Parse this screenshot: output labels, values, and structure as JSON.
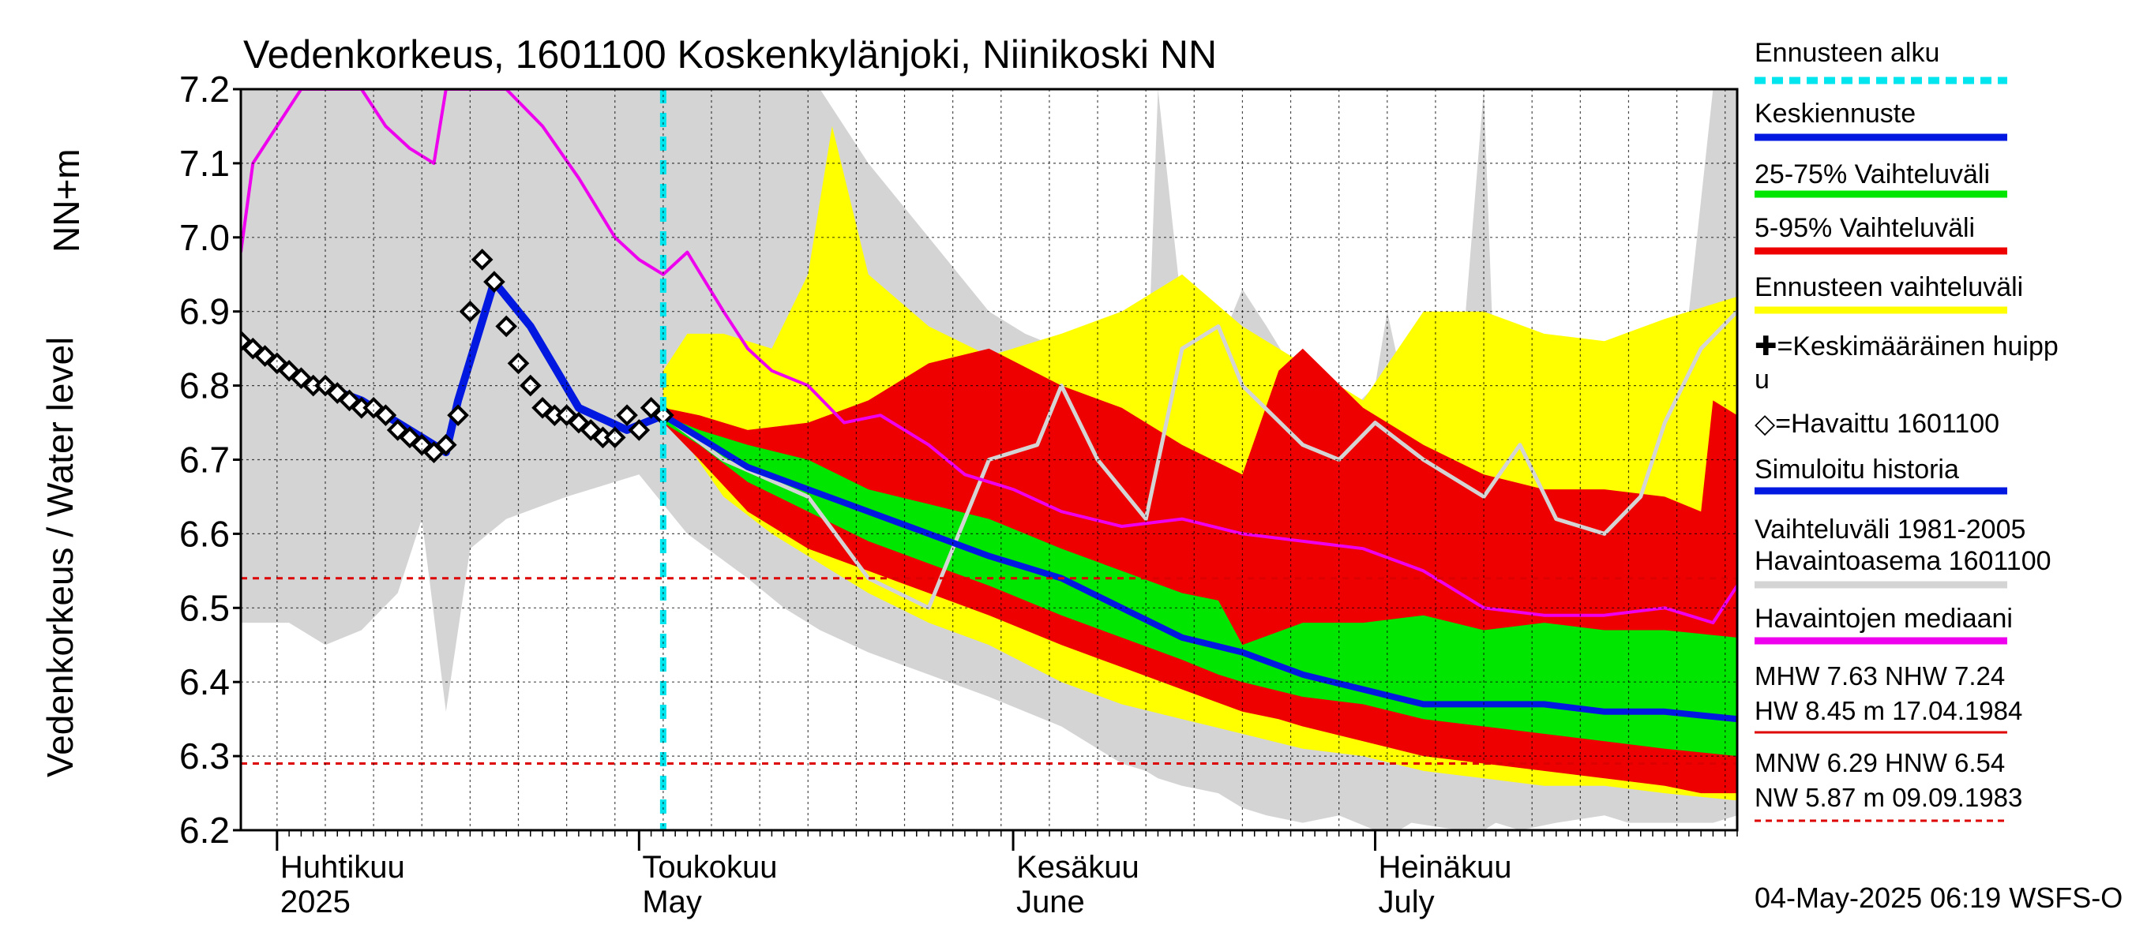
{
  "chart_data": {
    "type": "area",
    "title": "Vedenkorkeus, 1601100 Koskenkylänjoki, Niinikoski NN",
    "ylabel_left": "Vedenkorkeus / Water level",
    "ylabel_unit": "NN+m",
    "ylim": [
      6.2,
      7.2
    ],
    "y_ticks": [
      "6.2",
      "6.3",
      "6.4",
      "6.5",
      "6.6",
      "6.7",
      "6.8",
      "6.9",
      "7.0",
      "7.1",
      "7.2"
    ],
    "x_start": "2025-03-29",
    "x_end": "2025-07-31",
    "months": [
      {
        "date": "2025-04-01",
        "label_fi": "Huhtikuu",
        "label_en": "2025"
      },
      {
        "date": "2025-05-01",
        "label_fi": "Toukokuu",
        "label_en": "May"
      },
      {
        "date": "2025-06-01",
        "label_fi": "Kesäkuu",
        "label_en": "June"
      },
      {
        "date": "2025-07-01",
        "label_fi": "Heinäkuu",
        "label_en": "July"
      }
    ],
    "forecast_start": "2025-05-03",
    "hlines": [
      6.54,
      6.29
    ],
    "colors": {
      "forecast_start": "#00e5ee",
      "mean_forecast": "#0018e0",
      "range_25_75": "#00e600",
      "range_5_95": "#ee0000",
      "forecast_range": "#ffff00",
      "history_range": "#d4d4d4",
      "median": "#ee00ee",
      "observed": "#000000",
      "hline": "#dd0000"
    },
    "hist_range": {
      "x": [
        "2025-03-29",
        "2025-04-02",
        "2025-04-05",
        "2025-04-08",
        "2025-04-11",
        "2025-04-13",
        "2025-04-15",
        "2025-04-17",
        "2025-04-20",
        "2025-04-25",
        "2025-05-01",
        "2025-05-05",
        "2025-05-10",
        "2025-05-13",
        "2025-05-16",
        "2025-05-20",
        "2025-05-25",
        "2025-05-30",
        "2025-06-02",
        "2025-06-05",
        "2025-06-08",
        "2025-06-10",
        "2025-06-12",
        "2025-06-13",
        "2025-06-15",
        "2025-06-18",
        "2025-06-20",
        "2025-06-22",
        "2025-06-25",
        "2025-06-28",
        "2025-07-01",
        "2025-07-02",
        "2025-07-04",
        "2025-07-08",
        "2025-07-10",
        "2025-07-11",
        "2025-07-13",
        "2025-07-16",
        "2025-07-20",
        "2025-07-22",
        "2025-07-24",
        "2025-07-27",
        "2025-07-29",
        "2025-07-31"
      ],
      "upper": [
        7.2,
        7.2,
        7.2,
        7.2,
        7.2,
        7.2,
        7.2,
        7.2,
        7.2,
        7.2,
        7.2,
        7.2,
        7.2,
        7.2,
        7.2,
        7.1,
        7.0,
        6.9,
        6.87,
        6.85,
        6.85,
        6.83,
        6.75,
        7.2,
        6.9,
        6.85,
        6.93,
        6.88,
        6.8,
        6.75,
        6.8,
        6.9,
        6.75,
        6.8,
        7.2,
        6.75,
        6.85,
        6.72,
        6.85,
        6.65,
        6.88,
        6.9,
        7.2,
        7.2
      ],
      "lower": [
        6.48,
        6.48,
        6.45,
        6.47,
        6.52,
        6.62,
        6.36,
        6.58,
        6.62,
        6.65,
        6.68,
        6.6,
        6.54,
        6.5,
        6.47,
        6.44,
        6.41,
        6.38,
        6.36,
        6.34,
        6.31,
        6.29,
        6.28,
        6.27,
        6.26,
        6.25,
        6.23,
        6.22,
        6.21,
        6.22,
        6.2,
        6.19,
        6.21,
        6.2,
        6.2,
        6.21,
        6.2,
        6.21,
        6.22,
        6.21,
        6.21,
        6.21,
        6.21,
        6.22
      ]
    },
    "forecast_range": {
      "x": [
        "2025-05-03",
        "2025-05-05",
        "2025-05-08",
        "2025-05-12",
        "2025-05-15",
        "2025-05-17",
        "2025-05-20",
        "2025-05-25",
        "2025-05-30",
        "2025-06-05",
        "2025-06-10",
        "2025-06-15",
        "2025-06-20",
        "2025-06-25",
        "2025-06-30",
        "2025-07-05",
        "2025-07-10",
        "2025-07-15",
        "2025-07-20",
        "2025-07-25",
        "2025-07-31"
      ],
      "upper": [
        6.82,
        6.87,
        6.87,
        6.85,
        6.95,
        7.15,
        6.95,
        6.88,
        6.84,
        6.87,
        6.9,
        6.95,
        6.88,
        6.83,
        6.78,
        6.9,
        6.9,
        6.87,
        6.86,
        6.89,
        6.92
      ],
      "lower": [
        6.76,
        6.72,
        6.65,
        6.6,
        6.57,
        6.55,
        6.52,
        6.48,
        6.45,
        6.4,
        6.37,
        6.35,
        6.33,
        6.31,
        6.3,
        6.28,
        6.27,
        6.26,
        6.26,
        6.25,
        6.24
      ]
    },
    "range_5_95": {
      "x": [
        "2025-05-03",
        "2025-05-06",
        "2025-05-10",
        "2025-05-15",
        "2025-05-20",
        "2025-05-25",
        "2025-05-30",
        "2025-06-05",
        "2025-06-10",
        "2025-06-15",
        "2025-06-20",
        "2025-06-23",
        "2025-06-25",
        "2025-06-30",
        "2025-07-05",
        "2025-07-10",
        "2025-07-15",
        "2025-07-20",
        "2025-07-25",
        "2025-07-28",
        "2025-07-29",
        "2025-07-31"
      ],
      "upper": [
        6.77,
        6.76,
        6.74,
        6.75,
        6.78,
        6.83,
        6.85,
        6.8,
        6.77,
        6.72,
        6.68,
        6.82,
        6.85,
        6.77,
        6.72,
        6.68,
        6.66,
        6.66,
        6.65,
        6.63,
        6.78,
        6.76
      ],
      "lower": [
        6.75,
        6.7,
        6.63,
        6.58,
        6.55,
        6.52,
        6.49,
        6.45,
        6.42,
        6.39,
        6.36,
        6.35,
        6.34,
        6.32,
        6.3,
        6.29,
        6.28,
        6.27,
        6.26,
        6.25,
        6.25,
        6.25
      ]
    },
    "range_25_75": {
      "x": [
        "2025-05-03",
        "2025-05-06",
        "2025-05-10",
        "2025-05-15",
        "2025-05-20",
        "2025-05-25",
        "2025-05-30",
        "2025-06-05",
        "2025-06-10",
        "2025-06-15",
        "2025-06-18",
        "2025-06-20",
        "2025-06-25",
        "2025-06-30",
        "2025-07-05",
        "2025-07-10",
        "2025-07-15",
        "2025-07-20",
        "2025-07-25",
        "2025-07-31"
      ],
      "upper": [
        6.76,
        6.74,
        6.72,
        6.7,
        6.66,
        6.64,
        6.62,
        6.58,
        6.55,
        6.52,
        6.51,
        6.45,
        6.48,
        6.48,
        6.49,
        6.47,
        6.48,
        6.47,
        6.47,
        6.46
      ],
      "lower": [
        6.75,
        6.72,
        6.67,
        6.63,
        6.59,
        6.56,
        6.53,
        6.49,
        6.46,
        6.43,
        6.41,
        6.4,
        6.38,
        6.37,
        6.35,
        6.34,
        6.33,
        6.32,
        6.31,
        6.3
      ]
    },
    "mean_forecast": {
      "x": [
        "2025-05-03",
        "2025-05-06",
        "2025-05-10",
        "2025-05-15",
        "2025-05-20",
        "2025-05-25",
        "2025-05-30",
        "2025-06-05",
        "2025-06-10",
        "2025-06-15",
        "2025-06-20",
        "2025-06-25",
        "2025-06-30",
        "2025-07-05",
        "2025-07-10",
        "2025-07-15",
        "2025-07-20",
        "2025-07-25",
        "2025-07-31"
      ],
      "values": [
        6.76,
        6.73,
        6.69,
        6.66,
        6.63,
        6.6,
        6.57,
        6.54,
        6.5,
        6.46,
        6.44,
        6.41,
        6.39,
        6.37,
        6.37,
        6.37,
        6.36,
        6.36,
        6.35
      ]
    },
    "simulated_history": {
      "x": [
        "2025-03-29",
        "2025-04-03",
        "2025-04-08",
        "2025-04-13",
        "2025-04-15",
        "2025-04-16",
        "2025-04-19",
        "2025-04-22",
        "2025-04-26",
        "2025-04-30",
        "2025-05-03"
      ],
      "values": [
        6.86,
        6.81,
        6.78,
        6.73,
        6.71,
        6.78,
        6.94,
        6.88,
        6.77,
        6.74,
        6.76
      ]
    },
    "history_line": {
      "x": [
        "2025-05-03",
        "2025-05-08",
        "2025-05-15",
        "2025-05-20",
        "2025-05-25",
        "2025-05-30",
        "2025-06-03",
        "2025-06-05",
        "2025-06-08",
        "2025-06-12",
        "2025-06-15",
        "2025-06-18",
        "2025-06-20",
        "2025-06-25",
        "2025-06-28",
        "2025-07-01",
        "2025-07-05",
        "2025-07-10",
        "2025-07-13",
        "2025-07-16",
        "2025-07-20",
        "2025-07-23",
        "2025-07-25",
        "2025-07-28",
        "2025-07-31"
      ],
      "values": [
        6.76,
        6.7,
        6.65,
        6.54,
        6.5,
        6.7,
        6.72,
        6.8,
        6.7,
        6.62,
        6.85,
        6.88,
        6.8,
        6.72,
        6.7,
        6.75,
        6.7,
        6.65,
        6.72,
        6.62,
        6.6,
        6.65,
        6.75,
        6.85,
        6.9
      ]
    },
    "median": {
      "x": [
        "2025-03-29",
        "2025-03-30",
        "2025-04-01",
        "2025-04-03",
        "2025-04-05",
        "2025-04-08",
        "2025-04-10",
        "2025-04-12",
        "2025-04-14",
        "2025-04-15",
        "2025-04-17",
        "2025-04-20",
        "2025-04-23",
        "2025-04-26",
        "2025-04-29",
        "2025-05-01",
        "2025-05-03",
        "2025-05-05",
        "2025-05-08",
        "2025-05-10",
        "2025-05-12",
        "2025-05-15",
        "2025-05-18",
        "2025-05-21",
        "2025-05-25",
        "2025-05-28",
        "2025-06-01",
        "2025-06-05",
        "2025-06-10",
        "2025-06-15",
        "2025-06-20",
        "2025-06-25",
        "2025-06-30",
        "2025-07-05",
        "2025-07-10",
        "2025-07-15",
        "2025-07-20",
        "2025-07-25",
        "2025-07-29",
        "2025-07-31"
      ],
      "values": [
        6.98,
        7.1,
        7.15,
        7.2,
        7.2,
        7.2,
        7.15,
        7.12,
        7.1,
        7.2,
        7.2,
        7.2,
        7.15,
        7.08,
        7.0,
        6.97,
        6.95,
        6.98,
        6.9,
        6.85,
        6.82,
        6.8,
        6.75,
        6.76,
        6.72,
        6.68,
        6.66,
        6.63,
        6.61,
        6.62,
        6.6,
        6.59,
        6.58,
        6.55,
        6.5,
        6.49,
        6.49,
        6.5,
        6.48,
        6.53
      ]
    },
    "observed": {
      "x": [
        "2025-03-29",
        "2025-03-30",
        "2025-03-31",
        "2025-04-01",
        "2025-04-02",
        "2025-04-03",
        "2025-04-04",
        "2025-04-05",
        "2025-04-06",
        "2025-04-07",
        "2025-04-08",
        "2025-04-09",
        "2025-04-10",
        "2025-04-11",
        "2025-04-12",
        "2025-04-13",
        "2025-04-14",
        "2025-04-15",
        "2025-04-16",
        "2025-04-17",
        "2025-04-18",
        "2025-04-19",
        "2025-04-20",
        "2025-04-21",
        "2025-04-22",
        "2025-04-23",
        "2025-04-24",
        "2025-04-25",
        "2025-04-26",
        "2025-04-27",
        "2025-04-28",
        "2025-04-29",
        "2025-04-30",
        "2025-05-01",
        "2025-05-02",
        "2025-05-03"
      ],
      "values": [
        6.86,
        6.85,
        6.84,
        6.83,
        6.82,
        6.81,
        6.8,
        6.8,
        6.79,
        6.78,
        6.77,
        6.77,
        6.76,
        6.74,
        6.73,
        6.72,
        6.71,
        6.72,
        6.76,
        6.9,
        6.97,
        6.94,
        6.88,
        6.83,
        6.8,
        6.77,
        6.76,
        6.76,
        6.75,
        6.74,
        6.73,
        6.73,
        6.76,
        6.74,
        6.77,
        6.76
      ]
    },
    "legend": [
      {
        "label": "Ennusteen alku",
        "style": "dashed",
        "color": "#00e5ee"
      },
      {
        "label": "Keskiennuste",
        "style": "line",
        "color": "#0018e0"
      },
      {
        "label": "25-75% Vaihteluväli",
        "style": "line",
        "color": "#00e600"
      },
      {
        "label": "5-95% Vaihteluväli",
        "style": "line",
        "color": "#ee0000"
      },
      {
        "label": "Ennusteen vaihteluväli",
        "style": "line",
        "color": "#ffff00"
      },
      {
        "label": "✚=Keskimääräinen huipp",
        "label2": "u",
        "style": "none",
        "color": "#000000"
      },
      {
        "label": "◇=Havaittu 1601100",
        "style": "none",
        "color": "#000000"
      },
      {
        "label": "Simuloitu historia",
        "style": "line",
        "color": "#0018e0"
      },
      {
        "label": "Vaihteluväli 1981-2005",
        "label2": " Havaintoasema 1601100",
        "style": "line",
        "color": "#d4d4d4"
      },
      {
        "label": "Havaintojen mediaani",
        "style": "line",
        "color": "#ee00ee"
      }
    ],
    "stats": [
      {
        "text": "MHW    7.63 NHW    7.24",
        "text2": "HW   8.45 m 17.04.1984",
        "line_color": "#dd0000",
        "line_style": "solid"
      },
      {
        "text": "MNW    6.29 HNW    6.54",
        "text2": "NW   5.87 m 09.09.1983",
        "line_color": "#dd0000",
        "line_style": "dashed"
      }
    ],
    "footer": "04-May-2025 06:19 WSFS-O"
  }
}
